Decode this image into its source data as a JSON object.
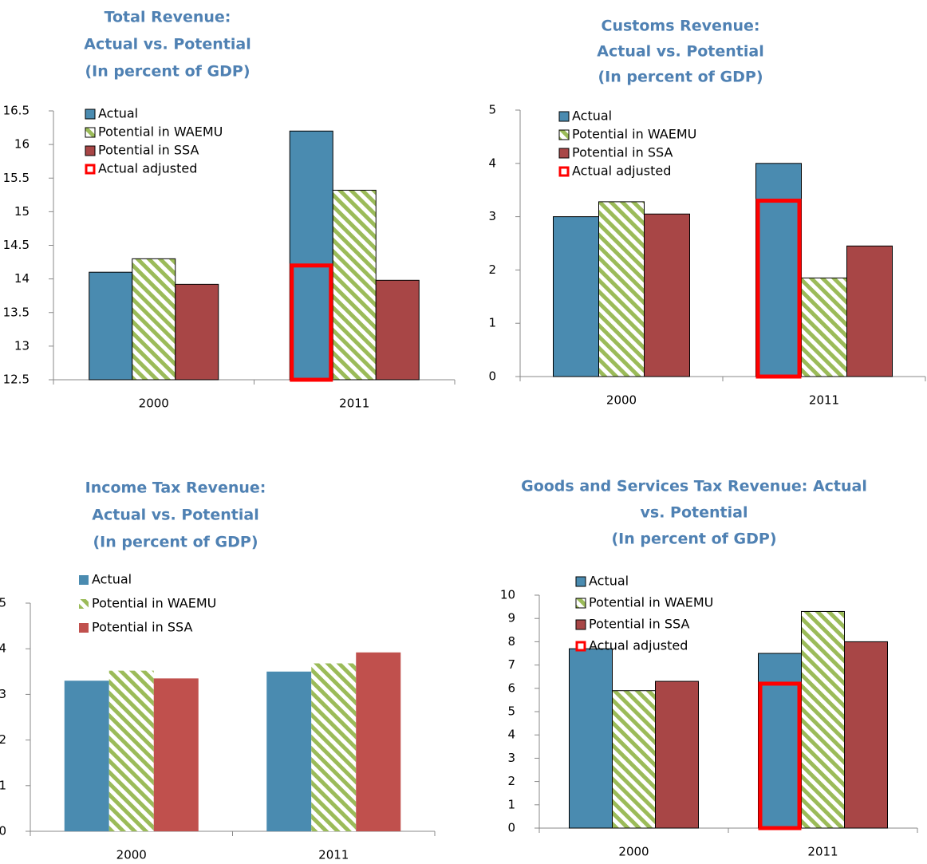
{
  "chart_data": [
    {
      "type": "bar",
      "title": [
        "Total Revenue:",
        "Actual vs. Potential",
        "(In percent of GDP)"
      ],
      "categories": [
        "2000",
        "2011"
      ],
      "ylim": [
        12.5,
        16.5
      ],
      "yticks": [
        12.5,
        13,
        13.5,
        14,
        14.5,
        15,
        15.5,
        16,
        16.5
      ],
      "bar_border": true,
      "series": [
        {
          "name": "Actual",
          "color": "#4a8bb0",
          "values": [
            14.1,
            16.2
          ]
        },
        {
          "name": "Potential in WAEMU",
          "color": "#9bbb59",
          "pattern": "hatch",
          "values": [
            14.3,
            15.32
          ]
        },
        {
          "name": "Potential in SSA",
          "color": "#a84646",
          "values": [
            13.92,
            13.98
          ]
        },
        {
          "name": "Actual adjusted",
          "color": "#ff0000",
          "style": "outline",
          "values": [
            null,
            14.2
          ]
        }
      ]
    },
    {
      "type": "bar",
      "title": [
        "Customs Revenue:",
        "Actual vs. Potential",
        "(In percent of GDP)"
      ],
      "categories": [
        "2000",
        "2011"
      ],
      "ylim": [
        0,
        5
      ],
      "yticks": [
        0,
        1,
        2,
        3,
        4,
        5
      ],
      "bar_border": true,
      "series": [
        {
          "name": "Actual",
          "color": "#4a8bb0",
          "values": [
            3.0,
            4.0
          ]
        },
        {
          "name": "Potential in WAEMU",
          "color": "#9bbb59",
          "pattern": "hatch",
          "values": [
            3.28,
            1.85
          ]
        },
        {
          "name": "Potential in SSA",
          "color": "#a84646",
          "values": [
            3.05,
            2.45
          ]
        },
        {
          "name": "Actual adjusted",
          "color": "#ff0000",
          "style": "outline",
          "values": [
            null,
            3.3
          ]
        }
      ]
    },
    {
      "type": "bar",
      "title": [
        "Income Tax Revenue:",
        "Actual vs. Potential",
        "(In percent of GDP)"
      ],
      "categories": [
        "2000",
        "2011"
      ],
      "ylim": [
        0,
        5
      ],
      "yticks": [
        0,
        1,
        2,
        3,
        4,
        5
      ],
      "bar_border": false,
      "series": [
        {
          "name": "Actual",
          "color": "#4a8bb0",
          "values": [
            3.3,
            3.5
          ]
        },
        {
          "name": "Potential in WAEMU",
          "color": "#9bbb59",
          "pattern": "hatch",
          "values": [
            3.52,
            3.68
          ]
        },
        {
          "name": "Potential in SSA",
          "color": "#c0504d",
          "values": [
            3.35,
            3.92
          ]
        }
      ]
    },
    {
      "type": "bar",
      "title": [
        "Goods and Services Tax Revenue: Actual",
        "vs. Potential",
        "(In percent of GDP)"
      ],
      "categories": [
        "2000",
        "2011"
      ],
      "ylim": [
        0,
        10
      ],
      "yticks": [
        0,
        1,
        2,
        3,
        4,
        5,
        6,
        7,
        8,
        9,
        10
      ],
      "bar_border": true,
      "series": [
        {
          "name": "Actual",
          "color": "#4a8bb0",
          "values": [
            7.7,
            7.5
          ]
        },
        {
          "name": "Potential in WAEMU",
          "color": "#9bbb59",
          "pattern": "hatch",
          "values": [
            5.9,
            9.3
          ]
        },
        {
          "name": "Potential in SSA",
          "color": "#a84646",
          "values": [
            6.3,
            8.0
          ]
        },
        {
          "name": "Actual adjusted",
          "color": "#ff0000",
          "style": "outline",
          "values": [
            null,
            6.2
          ]
        }
      ]
    }
  ]
}
